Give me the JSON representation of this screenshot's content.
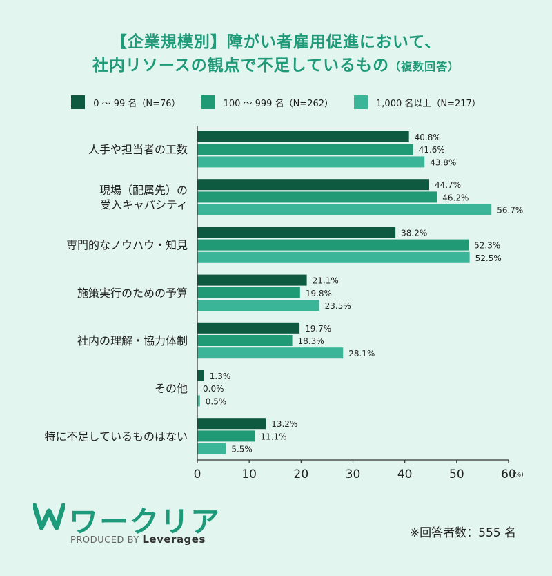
{
  "title_line1": "【企業規模別】障がい者雇用促進において、",
  "title_line2": "社内リソースの観点で不足しているもの",
  "title_sub": "（複数回答）",
  "legend": [
    {
      "label": "0 〜 99 名（N=76）",
      "color": "#0d5a41"
    },
    {
      "label": "100 〜 999 名（N=262）",
      "color": "#1f9a74"
    },
    {
      "label": "1,000 名以上（N=217）",
      "color": "#3bb597"
    }
  ],
  "chart_data": {
    "type": "bar",
    "orientation": "horizontal",
    "categories": [
      [
        "人手や担当者の工数"
      ],
      [
        "現場（配属先）の",
        "受入キャパシティ"
      ],
      [
        "専門的なノウハウ・知見"
      ],
      [
        "施策実行のための予算"
      ],
      [
        "社内の理解・協力体制"
      ],
      [
        "その他"
      ],
      [
        "特に不足しているものはない"
      ]
    ],
    "series": [
      {
        "name": "0 〜 99 名（N=76）",
        "values": [
          40.8,
          44.7,
          38.2,
          21.1,
          19.7,
          1.3,
          13.2
        ]
      },
      {
        "name": "100 〜 999 名（N=262）",
        "values": [
          41.6,
          46.2,
          52.3,
          19.8,
          18.3,
          0.0,
          11.1
        ]
      },
      {
        "name": "1,000 名以上（N=217）",
        "values": [
          43.8,
          56.7,
          52.5,
          23.5,
          28.1,
          0.5,
          5.5
        ]
      }
    ],
    "xlim": [
      0,
      60
    ],
    "xticks": [
      0,
      10,
      20,
      30,
      40,
      50,
      60
    ],
    "x_unit": "(%)",
    "value_suffix": "%"
  },
  "brand": {
    "name": "ワークリア",
    "produced_prefix": "PRODUCED BY ",
    "produced_by": "Leverages"
  },
  "footnote": "※回答者数：555 名"
}
